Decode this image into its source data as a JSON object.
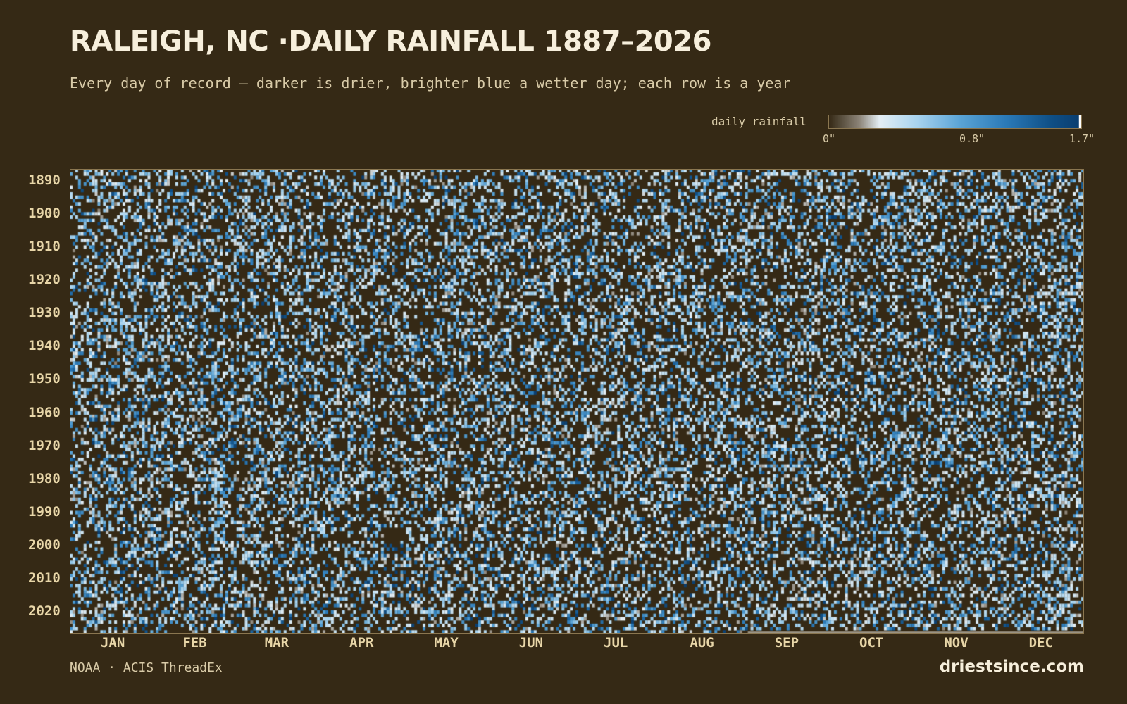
{
  "header": {
    "title": "RALEIGH, NC ·DAILY RAINFALL 1887–2026",
    "subtitle": "Every day of record — darker is drier, brighter blue a wetter day; each row is a year"
  },
  "legend": {
    "label": "daily rainfall",
    "ticks": [
      "0\"",
      "0.8\"",
      "1.7\""
    ]
  },
  "footer": {
    "source": "NOAA · ACIS ThreadEx",
    "brand": "driestsince.com"
  },
  "chart_data": {
    "type": "heatmap",
    "title": "RALEIGH, NC ·DAILY RAINFALL 1887–2026",
    "x_categories": [
      "JAN",
      "FEB",
      "MAR",
      "APR",
      "MAY",
      "JUN",
      "JUL",
      "AUG",
      "SEP",
      "OCT",
      "NOV",
      "DEC"
    ],
    "y_tick_labels": [
      "1890",
      "1900",
      "1910",
      "1920",
      "1930",
      "1940",
      "1950",
      "1960",
      "1970",
      "1980",
      "1990",
      "2000",
      "2010",
      "2020"
    ],
    "y_range": [
      1887,
      2026
    ],
    "days_per_row": 365,
    "color_scale": {
      "unit": "inches",
      "min": 0,
      "max": 1.7,
      "stops": [
        "#352915",
        "#8c8478",
        "#e4eef4",
        "#a8d3ee",
        "#5aa4d6",
        "#2b7ab8",
        "#0f4f86",
        "#0a3e70"
      ]
    },
    "values_note": "",
    "colors": {
      "background": "#352915",
      "text": "#e8d6a8"
    }
  }
}
